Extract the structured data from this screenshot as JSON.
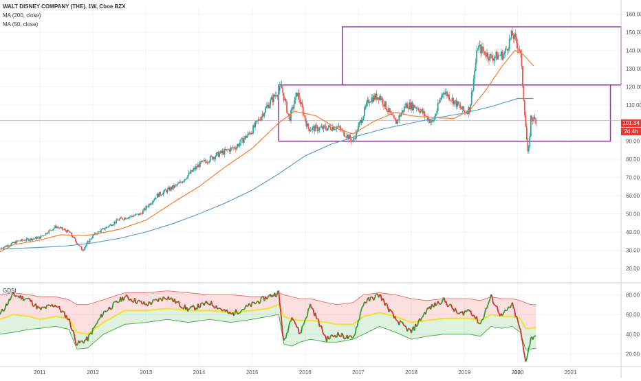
{
  "header": {
    "title": "WALT DISNEY COMPANY (THE), 1W, Cboe BZX",
    "ma200_label": "MA (200, close)",
    "ma50_label": "MA (50, close)"
  },
  "indicator": {
    "label": "GDSI"
  },
  "price_tag": {
    "last": "101.34",
    "countdown": "2d 4h"
  },
  "colors": {
    "up": "#26a69a",
    "down": "#ef5350",
    "ma200": "#5b9ec9",
    "ma50": "#f57c33",
    "box": "#9c27b0",
    "gdsi_line_up": "#2e9e2e",
    "gdsi_line_down": "#d32f2f",
    "band_upper": "#e57373",
    "band_lower": "#4caf50",
    "mid": "#f0e040"
  },
  "chart_data": [
    {
      "type": "line",
      "title": "WALT DISNEY COMPANY (THE), 1W, Cboe BZX",
      "x_ticks": [
        "2011",
        "2012",
        "2013",
        "2014",
        "2015",
        "2016",
        "2017",
        "2018",
        "2019",
        "2020",
        "2021",
        "20"
      ],
      "y_ticks": [
        "20.00",
        "30.00",
        "40.00",
        "50.00",
        "60.00",
        "70.00",
        "80.00",
        "90.00",
        "100.00",
        "110.00",
        "120.00",
        "130.00",
        "140.00",
        "150.00",
        "160.00"
      ],
      "x_range": [
        2010.25,
        2021.95
      ],
      "ylim": [
        13.5,
        164
      ],
      "series": [
        {
          "name": "MA (200, close)",
          "x": [
            2010.25,
            2011.0,
            2011.5,
            2012.0,
            2012.5,
            2013.0,
            2013.5,
            2014.0,
            2014.5,
            2015.0,
            2015.5,
            2016.0,
            2016.5,
            2017.0,
            2017.5,
            2018.0,
            2018.5,
            2019.0,
            2019.5,
            2020.0,
            2020.3
          ],
          "values": [
            30.5,
            31.5,
            32.3,
            34.0,
            36.5,
            40.0,
            44.5,
            50.0,
            56.0,
            63.0,
            72.0,
            82.0,
            88.5,
            93.0,
            97.0,
            100.0,
            103.0,
            105.5,
            109.0,
            113.5,
            113.5
          ]
        },
        {
          "name": "MA (50, close)",
          "x": [
            2010.25,
            2010.5,
            2011.0,
            2011.4,
            2011.8,
            2012.0,
            2012.5,
            2013.0,
            2013.5,
            2014.0,
            2014.5,
            2015.0,
            2015.5,
            2015.8,
            2016.2,
            2016.6,
            2016.9,
            2017.3,
            2017.7,
            2018.0,
            2018.4,
            2018.8,
            2019.1,
            2019.4,
            2019.7,
            2019.95,
            2020.1,
            2020.3
          ],
          "values": [
            29.0,
            33.0,
            35.5,
            38.5,
            38.0,
            38.5,
            41.5,
            46.5,
            56.0,
            65.0,
            76.0,
            86.0,
            100.0,
            106.5,
            104.0,
            97.0,
            94.0,
            101.0,
            106.0,
            104.0,
            103.0,
            102.5,
            107.0,
            118.0,
            131.0,
            140.0,
            138.0,
            131.5
          ]
        },
        {
          "name": "Price",
          "x": [
            2010.25,
            2010.6,
            2011.0,
            2011.3,
            2011.55,
            2011.8,
            2012.0,
            2012.5,
            2012.9,
            2013.2,
            2013.6,
            2014.0,
            2014.3,
            2014.7,
            2015.0,
            2015.3,
            2015.55,
            2015.7,
            2015.85,
            2016.05,
            2016.3,
            2016.6,
            2016.9,
            2017.2,
            2017.4,
            2017.7,
            2017.9,
            2018.1,
            2018.4,
            2018.6,
            2018.8,
            2019.0,
            2019.1,
            2019.25,
            2019.5,
            2019.75,
            2019.9,
            2020.05,
            2020.15,
            2020.2,
            2020.25,
            2020.35
          ],
          "values": [
            31,
            35,
            37,
            43,
            40,
            30,
            38,
            47,
            50,
            60,
            66,
            77,
            82,
            87,
            96,
            110,
            120,
            102,
            117,
            97,
            97,
            98,
            90,
            113,
            115,
            100,
            110,
            109,
            100,
            118,
            112,
            106,
            108,
            142,
            136,
            138,
            149,
            140,
            100,
            80,
            103,
            101.34
          ]
        }
      ],
      "annotations": [
        {
          "type": "rectangle",
          "x": [
            2016.7,
            2021.95
          ],
          "y": [
            121,
            153
          ]
        },
        {
          "type": "rectangle",
          "x": [
            2015.5,
            2021.75
          ],
          "y": [
            90,
            121
          ]
        }
      ],
      "horizontal_line": 101.34
    },
    {
      "type": "line",
      "title": "GDSI",
      "y_ticks": [
        "20.00",
        "40.00",
        "60.00",
        "80.00"
      ],
      "ylim": [
        10,
        90
      ],
      "x": [
        2010.25,
        2010.5,
        2010.8,
        2011.0,
        2011.3,
        2011.55,
        2011.7,
        2011.9,
        2012.2,
        2012.6,
        2013.0,
        2013.4,
        2013.8,
        2014.2,
        2014.6,
        2015.0,
        2015.3,
        2015.5,
        2015.6,
        2015.75,
        2015.9,
        2016.1,
        2016.4,
        2016.6,
        2016.9,
        2017.1,
        2017.4,
        2017.7,
        2018.0,
        2018.3,
        2018.6,
        2018.9,
        2019.1,
        2019.3,
        2019.5,
        2019.7,
        2019.9,
        2020.05,
        2020.15,
        2020.25,
        2020.35
      ],
      "series": [
        {
          "name": "GDSI",
          "values": [
            60,
            80,
            75,
            65,
            70,
            55,
            30,
            35,
            62,
            78,
            70,
            78,
            65,
            72,
            60,
            70,
            78,
            82,
            30,
            60,
            40,
            70,
            35,
            40,
            35,
            72,
            80,
            55,
            42,
            65,
            75,
            60,
            65,
            50,
            78,
            58,
            70,
            45,
            12,
            35,
            40
          ]
        },
        {
          "name": "Upper band",
          "values": [
            80,
            82,
            80,
            78,
            78,
            75,
            70,
            70,
            75,
            82,
            82,
            84,
            82,
            80,
            80,
            78,
            78,
            82,
            80,
            78,
            76,
            76,
            72,
            70,
            72,
            80,
            82,
            80,
            76,
            74,
            76,
            76,
            76,
            74,
            78,
            76,
            76,
            74,
            72,
            70,
            70
          ]
        },
        {
          "name": "Lower band",
          "values": [
            40,
            42,
            45,
            46,
            48,
            45,
            25,
            26,
            40,
            50,
            52,
            55,
            52,
            55,
            52,
            55,
            58,
            60,
            30,
            28,
            32,
            35,
            32,
            32,
            35,
            40,
            48,
            42,
            35,
            38,
            40,
            40,
            40,
            38,
            48,
            46,
            48,
            42,
            25,
            25,
            26
          ]
        },
        {
          "name": "Mid",
          "values": [
            55,
            60,
            58,
            55,
            58,
            56,
            42,
            40,
            52,
            64,
            64,
            66,
            64,
            64,
            62,
            64,
            66,
            70,
            58,
            55,
            54,
            54,
            52,
            50,
            50,
            58,
            62,
            58,
            52,
            54,
            56,
            56,
            56,
            54,
            60,
            58,
            58,
            56,
            46,
            46,
            47
          ]
        }
      ]
    }
  ]
}
